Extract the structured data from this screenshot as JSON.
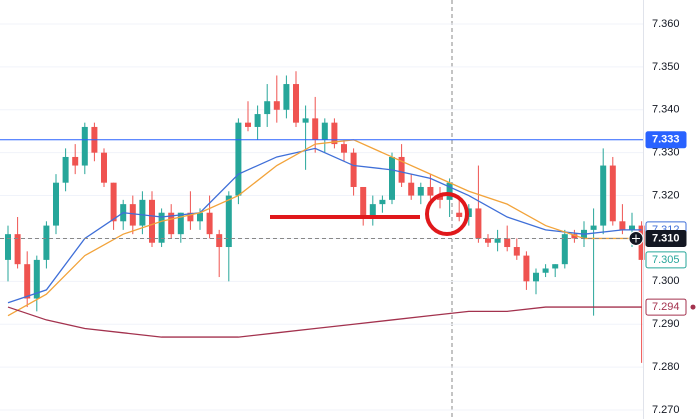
{
  "chart_data": {
    "type": "candlestick",
    "ylim": [
      7.2679,
      7.3656
    ],
    "yticks": [
      {
        "value": 7.27,
        "label": "7.270"
      },
      {
        "value": 7.28,
        "label": "7.280"
      },
      {
        "value": 7.29,
        "label": "7.290"
      },
      {
        "value": 7.3,
        "label": "7.300"
      },
      {
        "value": 7.31,
        "label": "7.310"
      },
      {
        "value": 7.32,
        "label": "7.320"
      },
      {
        "value": 7.33,
        "label": "7.330"
      },
      {
        "value": 7.34,
        "label": "7.340"
      },
      {
        "value": 7.35,
        "label": "7.350"
      },
      {
        "value": 7.36,
        "label": "7.360"
      }
    ],
    "grid": true,
    "up_color": "#26a69a",
    "down_color": "#ef5350",
    "candles": [
      [
        7.305,
        7.313,
        7.3,
        7.311
      ],
      [
        7.311,
        7.315,
        7.303,
        7.304
      ],
      [
        7.304,
        7.307,
        7.294,
        7.296
      ],
      [
        7.296,
        7.306,
        7.293,
        7.305
      ],
      [
        7.305,
        7.314,
        7.303,
        7.313
      ],
      [
        7.313,
        7.325,
        7.311,
        7.323
      ],
      [
        7.323,
        7.331,
        7.321,
        7.329
      ],
      [
        7.329,
        7.332,
        7.325,
        7.327
      ],
      [
        7.327,
        7.337,
        7.325,
        7.336
      ],
      [
        7.336,
        7.337,
        7.328,
        7.33
      ],
      [
        7.33,
        7.331,
        7.322,
        7.323
      ],
      [
        7.323,
        7.323,
        7.312,
        7.314
      ],
      [
        7.314,
        7.319,
        7.312,
        7.318
      ],
      [
        7.318,
        7.32,
        7.311,
        7.313
      ],
      [
        7.313,
        7.321,
        7.311,
        7.319
      ],
      [
        7.319,
        7.321,
        7.308,
        7.309
      ],
      [
        7.309,
        7.317,
        7.308,
        7.316
      ],
      [
        7.316,
        7.318,
        7.31,
        7.311
      ],
      [
        7.311,
        7.316,
        7.309,
        7.316
      ],
      [
        7.316,
        7.321,
        7.312,
        7.314
      ],
      [
        7.314,
        7.317,
        7.312,
        7.316
      ],
      [
        7.316,
        7.32,
        7.31,
        7.311
      ],
      [
        7.311,
        7.312,
        7.301,
        7.308
      ],
      [
        7.308,
        7.321,
        7.3,
        7.32
      ],
      [
        7.32,
        7.338,
        7.318,
        7.337
      ],
      [
        7.337,
        7.342,
        7.335,
        7.336
      ],
      [
        7.336,
        7.341,
        7.333,
        7.339
      ],
      [
        7.339,
        7.346,
        7.336,
        7.342
      ],
      [
        7.342,
        7.348,
        7.337,
        7.34
      ],
      [
        7.34,
        7.348,
        7.338,
        7.346
      ],
      [
        7.346,
        7.349,
        7.336,
        7.337
      ],
      [
        7.337,
        7.341,
        7.326,
        7.338
      ],
      [
        7.338,
        7.343,
        7.33,
        7.333
      ],
      [
        7.333,
        7.338,
        7.33,
        7.337
      ],
      [
        7.337,
        7.338,
        7.331,
        7.332
      ],
      [
        7.332,
        7.333,
        7.328,
        7.33
      ],
      [
        7.33,
        7.331,
        7.32,
        7.322
      ],
      [
        7.322,
        7.322,
        7.313,
        7.315
      ],
      [
        7.315,
        7.32,
        7.313,
        7.318
      ],
      [
        7.318,
        7.32,
        7.316,
        7.319
      ],
      [
        7.319,
        7.33,
        7.318,
        7.329
      ],
      [
        7.329,
        7.332,
        7.322,
        7.323
      ],
      [
        7.323,
        7.325,
        7.319,
        7.32
      ],
      [
        7.32,
        7.323,
        7.318,
        7.322
      ],
      [
        7.322,
        7.325,
        7.319,
        7.32
      ],
      [
        7.32,
        7.322,
        7.317,
        7.319
      ],
      [
        7.319,
        7.324,
        7.315,
        7.323
      ],
      [
        7.316,
        7.319,
        7.314,
        7.315
      ],
      [
        7.315,
        7.318,
        7.313,
        7.317
      ],
      [
        7.317,
        7.327,
        7.309,
        7.31
      ],
      [
        7.31,
        7.311,
        7.308,
        7.309
      ],
      [
        7.309,
        7.312,
        7.307,
        7.31
      ],
      [
        7.31,
        7.313,
        7.307,
        7.308
      ],
      [
        7.308,
        7.31,
        7.305,
        7.306
      ],
      [
        7.306,
        7.307,
        7.298,
        7.3
      ],
      [
        7.3,
        7.303,
        7.297,
        7.302
      ],
      [
        7.302,
        7.304,
        7.301,
        7.303
      ],
      [
        7.303,
        7.304,
        7.301,
        7.304
      ],
      [
        7.304,
        7.312,
        7.303,
        7.311
      ],
      [
        7.311,
        7.312,
        7.309,
        7.31
      ],
      [
        7.31,
        7.314,
        7.308,
        7.312
      ],
      [
        7.312,
        7.317,
        7.292,
        7.313
      ],
      [
        7.313,
        7.331,
        7.311,
        7.327
      ],
      [
        7.327,
        7.329,
        7.313,
        7.314
      ],
      [
        7.314,
        7.318,
        7.311,
        7.312
      ],
      [
        7.312,
        7.316,
        7.308,
        7.313
      ],
      [
        7.313,
        7.314,
        7.281,
        7.305
      ]
    ],
    "series": [
      {
        "color": "#3f6fd8",
        "x": [
          0,
          4,
          8,
          12,
          16,
          20,
          24,
          28,
          32,
          36,
          40,
          44,
          48,
          52,
          56,
          60,
          64,
          66
        ],
        "values": [
          7.295,
          7.298,
          7.31,
          7.316,
          7.315,
          7.316,
          7.325,
          7.329,
          7.331,
          7.327,
          7.326,
          7.324,
          7.32,
          7.315,
          7.312,
          7.311,
          7.312,
          7.312
        ]
      },
      {
        "color": "#f2a33a",
        "x": [
          0,
          4,
          8,
          12,
          16,
          20,
          24,
          28,
          32,
          36,
          40,
          44,
          48,
          52,
          56,
          60,
          64,
          66
        ],
        "values": [
          7.292,
          7.297,
          7.306,
          7.311,
          7.314,
          7.316,
          7.32,
          7.327,
          7.332,
          7.333,
          7.329,
          7.325,
          7.321,
          7.318,
          7.313,
          7.31,
          7.31,
          7.31
        ]
      },
      {
        "color": "#a3324e",
        "x": [
          0,
          4,
          8,
          12,
          16,
          20,
          24,
          28,
          32,
          36,
          40,
          44,
          48,
          52,
          56,
          60,
          64,
          66
        ],
        "values": [
          7.294,
          7.291,
          7.289,
          7.288,
          7.287,
          7.287,
          7.287,
          7.288,
          7.289,
          7.29,
          7.291,
          7.292,
          7.293,
          7.293,
          7.294,
          7.294,
          7.294,
          7.294
        ]
      }
    ],
    "price_tags": [
      {
        "value": 7.333,
        "color": "#2962ff",
        "style": "filled",
        "line": true
      },
      {
        "value": 7.312,
        "color": "#3f6fd8",
        "style": "outline"
      },
      {
        "value": 7.31,
        "label": "7.310",
        "color": "#131722",
        "style": "filled",
        "crosshair": true
      },
      {
        "value": 7.305,
        "color": "#26a69a",
        "style": "outline"
      },
      {
        "value": 7.294,
        "color": "#a3324e",
        "style": "outline"
      }
    ]
  }
}
